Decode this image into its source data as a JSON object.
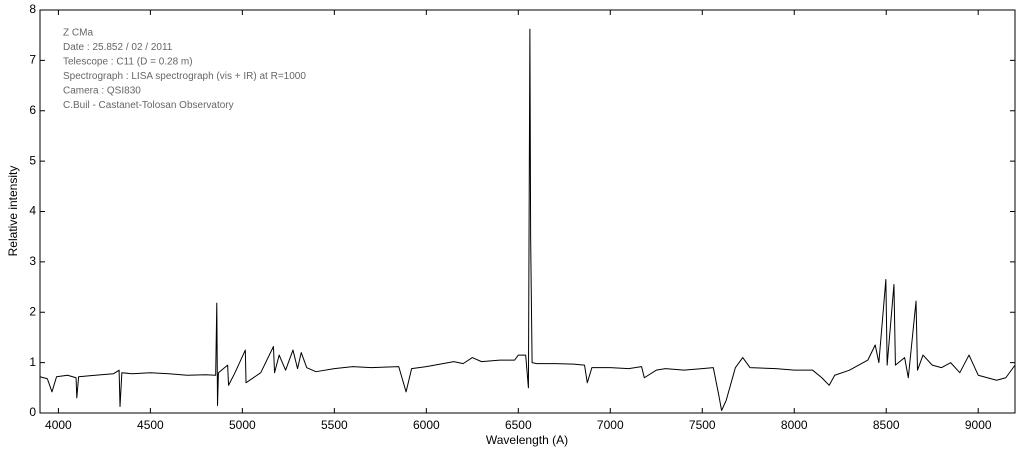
{
  "chart_data": {
    "type": "line",
    "annotations": [
      "Z CMa",
      "Date : 25.852 / 02 / 2011",
      "Telescope : C11 (D = 0.28 m)",
      "Spectrograph : LISA spectrograph (vis + IR) at R=1000",
      "Camera : QSI830",
      "C.Buil - Castanet-Tolosan Observatory"
    ],
    "xlabel": "Wavelength (A)",
    "ylabel": "Relative intensity",
    "xlim": [
      3900,
      9200
    ],
    "xticks": [
      4000,
      4500,
      5000,
      5500,
      6000,
      6500,
      7000,
      7500,
      8000,
      8500,
      9000
    ],
    "ylim": [
      0,
      8
    ],
    "yticks": [
      0,
      1,
      2,
      3,
      4,
      5,
      6,
      7,
      8
    ],
    "series": [
      {
        "color": "#000000",
        "x": [
          3900,
          3940,
          3965,
          3990,
          4050,
          4096,
          4100,
          4110,
          4200,
          4300,
          4330,
          4335,
          4345,
          4400,
          4500,
          4600,
          4700,
          4800,
          4855,
          4861,
          4865,
          4870,
          4920,
          4925,
          4960,
          5016,
          5020,
          5100,
          5169,
          5175,
          5200,
          5235,
          5275,
          5300,
          5320,
          5350,
          5400,
          5500,
          5600,
          5700,
          5850,
          5890,
          5920,
          6000,
          6150,
          6200,
          6250,
          6300,
          6400,
          6480,
          6500,
          6540,
          6555,
          6563,
          6567,
          6575,
          6600,
          6700,
          6800,
          6860,
          6875,
          6900,
          7000,
          7100,
          7170,
          7185,
          7250,
          7300,
          7400,
          7500,
          7560,
          7590,
          7605,
          7630,
          7680,
          7720,
          7760,
          7900,
          8000,
          8100,
          8150,
          8190,
          8220,
          8300,
          8400,
          8440,
          8460,
          8498,
          8505,
          8542,
          8550,
          8600,
          8620,
          8662,
          8670,
          8700,
          8750,
          8800,
          8850,
          8900,
          8950,
          9000,
          9050,
          9100,
          9150,
          9200
        ],
        "values": [
          0.72,
          0.68,
          0.42,
          0.72,
          0.75,
          0.7,
          0.3,
          0.72,
          0.75,
          0.78,
          0.85,
          0.13,
          0.8,
          0.78,
          0.8,
          0.78,
          0.75,
          0.76,
          0.75,
          2.18,
          0.15,
          0.8,
          0.95,
          0.55,
          0.8,
          1.25,
          0.6,
          0.8,
          1.32,
          0.8,
          1.15,
          0.85,
          1.25,
          0.88,
          1.2,
          0.9,
          0.82,
          0.88,
          0.92,
          0.9,
          0.92,
          0.42,
          0.88,
          0.92,
          1.02,
          0.98,
          1.1,
          1.02,
          1.05,
          1.05,
          1.15,
          1.15,
          0.5,
          7.62,
          3.5,
          1.0,
          0.98,
          0.98,
          0.97,
          0.95,
          0.6,
          0.9,
          0.9,
          0.88,
          0.92,
          0.7,
          0.85,
          0.88,
          0.85,
          0.88,
          0.9,
          0.35,
          0.05,
          0.25,
          0.9,
          1.1,
          0.9,
          0.88,
          0.85,
          0.85,
          0.7,
          0.55,
          0.75,
          0.85,
          1.05,
          1.35,
          1.0,
          2.65,
          0.95,
          2.55,
          0.95,
          1.1,
          0.7,
          2.22,
          0.85,
          1.15,
          0.95,
          0.9,
          1.0,
          0.8,
          1.15,
          0.75,
          0.7,
          0.65,
          0.7,
          0.95
        ]
      }
    ]
  }
}
